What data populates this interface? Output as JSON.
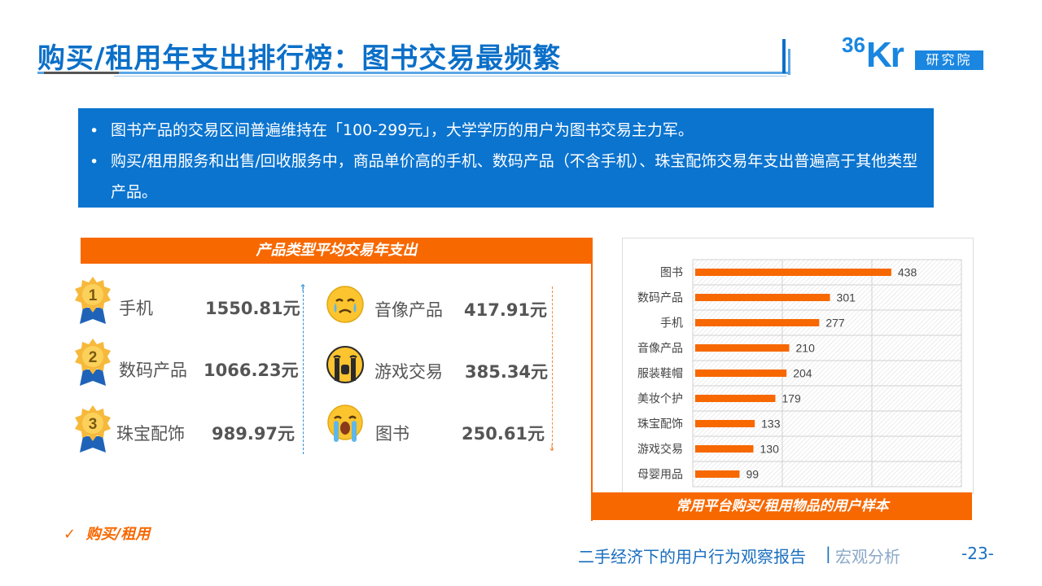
{
  "header": {
    "title": "购买/租用年支出排行榜：图书交易最频繁",
    "logo_num": "36",
    "logo_kr": "Kr",
    "logo_box": "研究院"
  },
  "summary": {
    "bullets": [
      "图书产品的交易区间普遍维持在「100-299元」，大学学历的用户为图书交易主力军。",
      "购买/租用服务和出售/回收服务中，商品单价高的手机、数码产品（不含手机）、珠宝配饰交易年支出普遍高于其他类型产品。"
    ]
  },
  "left_panel": {
    "header": "产品类型平均交易年支出",
    "top": [
      {
        "rank": "1",
        "name": "手机",
        "value": "1550.81元"
      },
      {
        "rank": "2",
        "name": "数码产品",
        "value": "1066.23元"
      },
      {
        "rank": "3",
        "name": "珠宝配饰",
        "value": "989.97元"
      }
    ],
    "bottom": [
      {
        "name": "音像产品",
        "value": "417.91元"
      },
      {
        "name": "游戏交易",
        "value": "385.34元"
      },
      {
        "name": "图书",
        "value": "250.61元"
      }
    ]
  },
  "chart_data": {
    "type": "bar",
    "orientation": "horizontal",
    "categories": [
      "图书",
      "数码产品",
      "手机",
      "音像产品",
      "服装鞋帽",
      "美妆个护",
      "珠宝配饰",
      "游戏交易",
      "母婴用品"
    ],
    "values": [
      438,
      301,
      277,
      210,
      204,
      179,
      133,
      130,
      99
    ],
    "title": "常用平台购买/租用物品的用户样本",
    "xlim": [
      0,
      600
    ],
    "grid": true,
    "bar_color": "#f76800"
  },
  "footer": {
    "note": "购买/租用",
    "note_check": "✓",
    "report_title": "二手经济下的用户行为观察报告",
    "separator": "|",
    "section": "宏观分析",
    "page": "-23-"
  },
  "colors": {
    "brand_blue": "#0b6fc8",
    "accent_orange": "#f76800"
  }
}
